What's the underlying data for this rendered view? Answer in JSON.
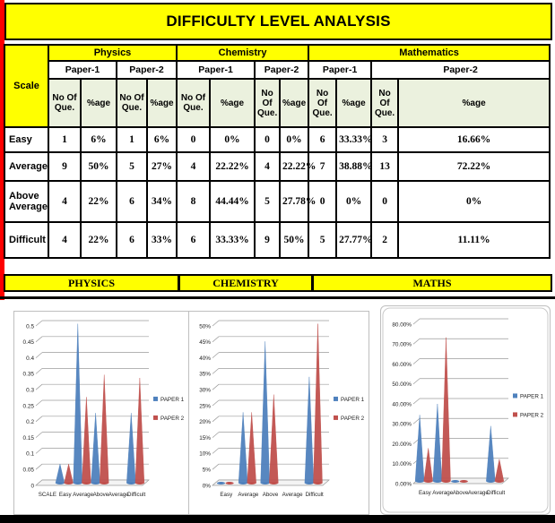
{
  "title": "DIFFICULTY LEVEL ANALYSIS",
  "table": {
    "scale_header": "Scale",
    "subjects": [
      {
        "name": "Physics",
        "papers": [
          "Paper-1",
          "Paper-2"
        ]
      },
      {
        "name": "Chemistry",
        "papers": [
          "Paper-1",
          "Paper-2"
        ]
      },
      {
        "name": "Mathematics",
        "papers": [
          "Paper-1",
          "Paper-2"
        ]
      }
    ],
    "sub_headers": {
      "no": "No Of Que.",
      "pct": "%age"
    },
    "rows": [
      {
        "label": "Easy",
        "values": [
          "1",
          "6%",
          "1",
          "6%",
          "0",
          "0%",
          "0",
          "0%",
          "6",
          "33.33%",
          "3",
          "16.66%"
        ]
      },
      {
        "label": "Average",
        "values": [
          "9",
          "50%",
          "5",
          "27%",
          "4",
          "22.22%",
          "4",
          "22.22%",
          "7",
          "38.88%",
          "13",
          "72.22%"
        ]
      },
      {
        "label": "Above Average",
        "values": [
          "4",
          "22%",
          "6",
          "34%",
          "8",
          "44.44%",
          "5",
          "27.78%",
          "0",
          "0%",
          "0",
          "0%"
        ]
      },
      {
        "label": "Difficult",
        "values": [
          "4",
          "22%",
          "6",
          "33%",
          "6",
          "33.33%",
          "9",
          "50%",
          "5",
          "27.77%",
          "2",
          "11.11%"
        ]
      }
    ]
  },
  "band": {
    "labels": [
      "PHYSICS",
      "CHEMISTRY",
      "MATHS"
    ]
  },
  "chart_data": [
    {
      "type": "bar",
      "title": "PHYSICS",
      "categories": [
        "Easy",
        "Average",
        "Above Average",
        "Difficult"
      ],
      "tick_labels": [
        "SCALE",
        "Easy",
        "Average",
        "Above",
        "Average",
        "Difficult"
      ],
      "series": [
        {
          "name": "PAPER 1",
          "color": "#4f81bd",
          "values": [
            0.06,
            0.5,
            0.22,
            0.22
          ]
        },
        {
          "name": "PAPER 2",
          "color": "#c0504d",
          "values": [
            0.06,
            0.27,
            0.34,
            0.33
          ]
        }
      ],
      "ymax": 0.5,
      "ytick_labels": [
        "0",
        "0.05",
        "0.1",
        "0.15",
        "0.2",
        "0.25",
        "0.3",
        "0.35",
        "0.4",
        "0.45",
        "0.5"
      ],
      "bar_slots": [
        1,
        2,
        3,
        5
      ],
      "legend_position": "right",
      "grid": true
    },
    {
      "type": "bar",
      "title": "CHEMISTRY",
      "categories": [
        "Easy",
        "Average",
        "Above Average",
        "Difficult"
      ],
      "tick_labels": [
        "Easy",
        "Average",
        "Above",
        "Average",
        "Difficult"
      ],
      "series": [
        {
          "name": "PAPER 1",
          "color": "#4f81bd",
          "values": [
            0,
            22.22,
            44.44,
            33.33
          ]
        },
        {
          "name": "PAPER 2",
          "color": "#c0504d",
          "values": [
            0,
            22.22,
            27.78,
            50
          ]
        }
      ],
      "ymax": 50,
      "ytick_labels": [
        "0%",
        "5%",
        "10%",
        "15%",
        "20%",
        "25%",
        "30%",
        "35%",
        "40%",
        "45%",
        "50%"
      ],
      "bar_slots": [
        0,
        1,
        2,
        4
      ],
      "legend_position": "right",
      "grid": true
    },
    {
      "type": "bar",
      "title": "MATHS",
      "categories": [
        "Easy",
        "Average",
        "Above Average",
        "Difficult"
      ],
      "tick_labels": [
        "Easy",
        "Average",
        "Above",
        "Average",
        "Difficult"
      ],
      "series": [
        {
          "name": "PAPER 1",
          "color": "#4f81bd",
          "values": [
            33.33,
            38.88,
            0,
            27.77
          ]
        },
        {
          "name": "PAPER 2",
          "color": "#c0504d",
          "values": [
            16.66,
            72.22,
            0,
            11.11
          ]
        }
      ],
      "ymax": 80,
      "ytick_labels": [
        "0.00%",
        "10.00%",
        "20.00%",
        "30.00%",
        "40.00%",
        "50.00%",
        "60.00%",
        "70.00%",
        "80.00%"
      ],
      "bar_slots": [
        0,
        1,
        2,
        4
      ],
      "legend_position": "right",
      "grid": true
    }
  ],
  "colors": {
    "band_yellow": "#ffff00",
    "header_green": "#ebf1de",
    "left_strip_red": "#fe0000",
    "series_blue": "#4f81bd",
    "series_red": "#c0504d",
    "border_black": "#000000"
  }
}
